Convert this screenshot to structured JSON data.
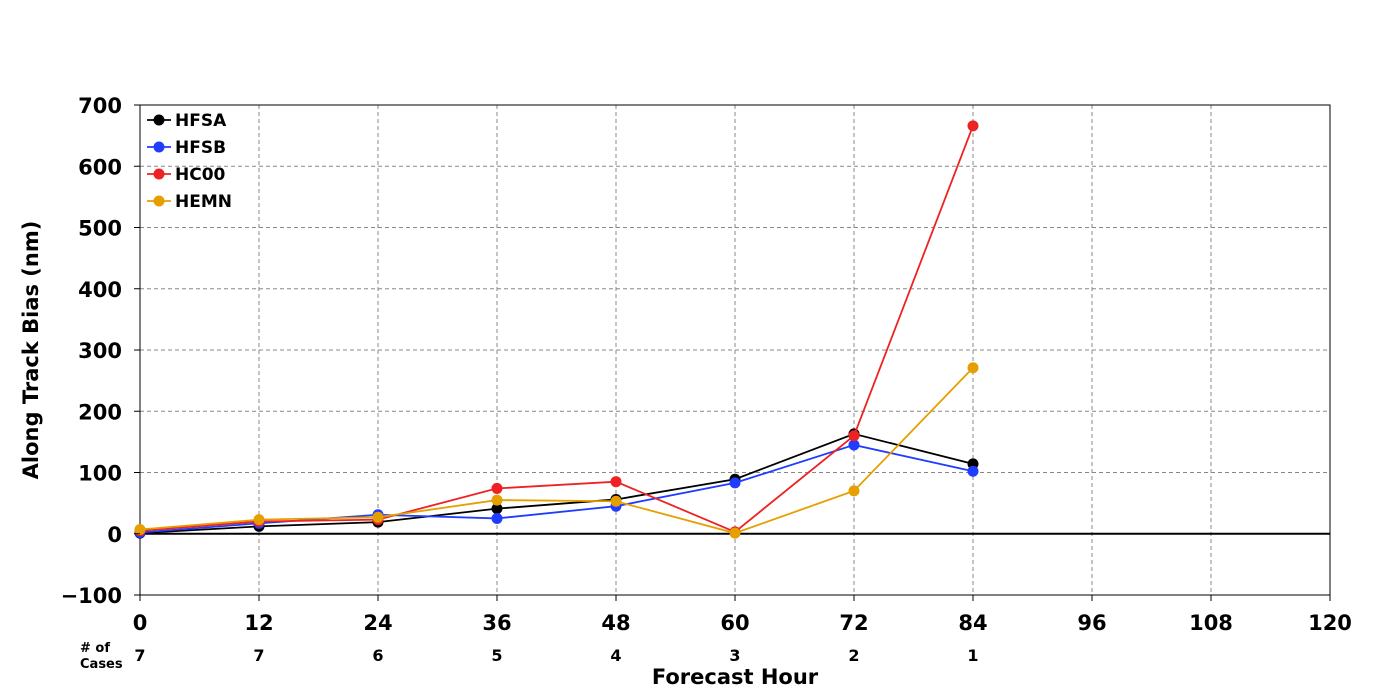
{
  "chart_data": {
    "type": "line",
    "xlabel": "Forecast Hour",
    "ylabel": "Along Track Bias (nm)",
    "xlim": [
      0,
      120
    ],
    "ylim": [
      -100,
      700
    ],
    "x_ticks": [
      "0",
      "12",
      "24",
      "36",
      "48",
      "60",
      "72",
      "84",
      "96",
      "108",
      "120"
    ],
    "y_ticks": [
      "700",
      "600",
      "500",
      "400",
      "300",
      "200",
      "100",
      "0",
      "−100"
    ],
    "x_tick_values": [
      0,
      12,
      24,
      36,
      48,
      60,
      72,
      84,
      96,
      108,
      120
    ],
    "y_tick_values": [
      700,
      600,
      500,
      400,
      300,
      200,
      100,
      0,
      -100
    ],
    "grid": true,
    "zero_line": true,
    "legend_position": "top-left",
    "x": [
      0,
      12,
      24,
      36,
      48,
      60,
      72,
      84
    ],
    "series": [
      {
        "name": "HFSA",
        "color": "#000000",
        "values": [
          1,
          12,
          19,
          41,
          56,
          89,
          163,
          114
        ]
      },
      {
        "name": "HFSB",
        "color": "#1f3cff",
        "values": [
          2,
          17,
          31,
          25,
          45,
          83,
          145,
          102
        ]
      },
      {
        "name": "HC00",
        "color": "#ee2222",
        "values": [
          5,
          20,
          23,
          74,
          85,
          3,
          160,
          666
        ]
      },
      {
        "name": "HEMN",
        "color": "#e69f00",
        "values": [
          7,
          23,
          27,
          55,
          53,
          1,
          70,
          271
        ]
      }
    ],
    "cases_label": "# of\nCases",
    "cases_label_line1": "# of",
    "cases_label_line2": "Cases",
    "cases": [
      "7",
      "7",
      "6",
      "5",
      "4",
      "3",
      "2",
      "1"
    ]
  }
}
